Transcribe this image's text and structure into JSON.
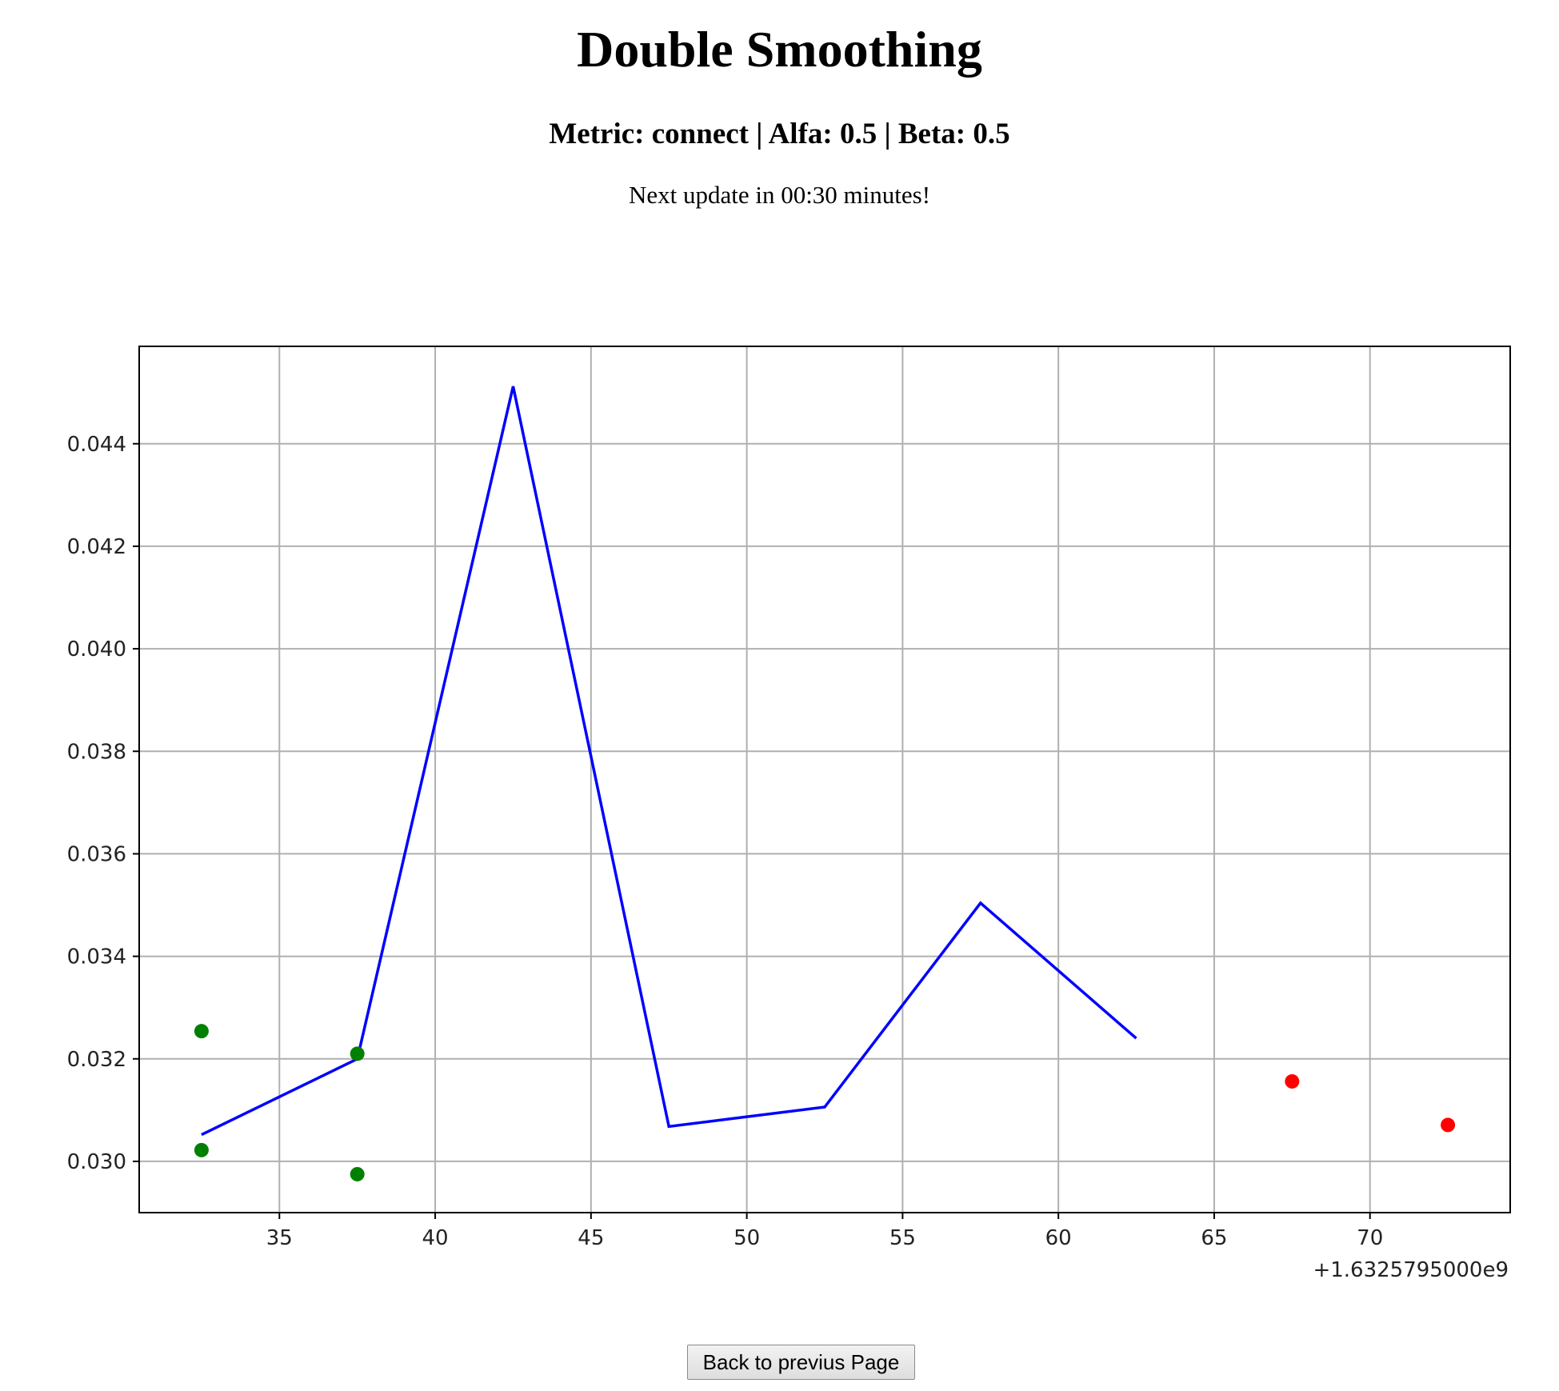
{
  "page": {
    "title": "Double Smoothing",
    "subtitle": "Metric: connect | Alfa: 0.5 | Beta: 0.5",
    "update_text": "Next update in 00:30 minutes!",
    "back_button_label": "Back to previus Page"
  },
  "chart_data": {
    "type": "line",
    "title": "",
    "xlabel": "",
    "ylabel": "",
    "x_offset_label": "+1.6325795000e9",
    "xlim": [
      30.5,
      74.5
    ],
    "ylim": [
      0.029,
      0.0459
    ],
    "grid": true,
    "x_ticks": [
      35,
      40,
      45,
      50,
      55,
      60,
      65,
      70
    ],
    "y_ticks": [
      0.03,
      0.032,
      0.034,
      0.036,
      0.038,
      0.04,
      0.042,
      0.044
    ],
    "y_tick_labels": [
      "0.030",
      "0.032",
      "0.034",
      "0.036",
      "0.038",
      "0.040",
      "0.042",
      "0.044"
    ],
    "series": [
      {
        "kind": "line",
        "color": "#0000ff",
        "points": [
          [
            32.5,
            0.03052
          ],
          [
            37.5,
            0.032
          ],
          [
            42.5,
            0.04512
          ],
          [
            47.5,
            0.03068
          ],
          [
            52.5,
            0.03106
          ],
          [
            57.5,
            0.03504
          ],
          [
            62.5,
            0.0324
          ]
        ]
      },
      {
        "kind": "scatter",
        "color": "#008000",
        "points": [
          [
            32.5,
            0.03254
          ],
          [
            32.5,
            0.03022
          ],
          [
            37.5,
            0.0321
          ],
          [
            37.5,
            0.02975
          ]
        ]
      },
      {
        "kind": "scatter",
        "color": "#ff0000",
        "points": [
          [
            67.5,
            0.03156
          ],
          [
            72.5,
            0.03071
          ]
        ]
      }
    ]
  }
}
